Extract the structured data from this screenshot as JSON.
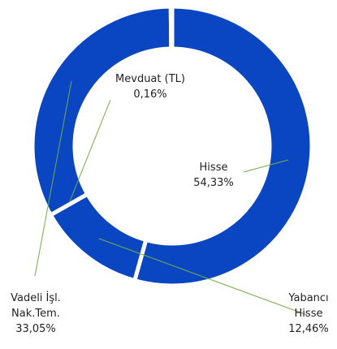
{
  "chart_data": {
    "type": "donut",
    "categories": [
      "Hisse",
      "Yabancı Hisse",
      "Vadeli İşl. Nak.Tem.",
      "Mevduat (TL)"
    ],
    "values": [
      54.33,
      12.46,
      33.05,
      0.16
    ],
    "value_labels": [
      "54,33%",
      "12,46%",
      "33,05%",
      "0,16%"
    ],
    "color": "#0a46c2"
  }
}
